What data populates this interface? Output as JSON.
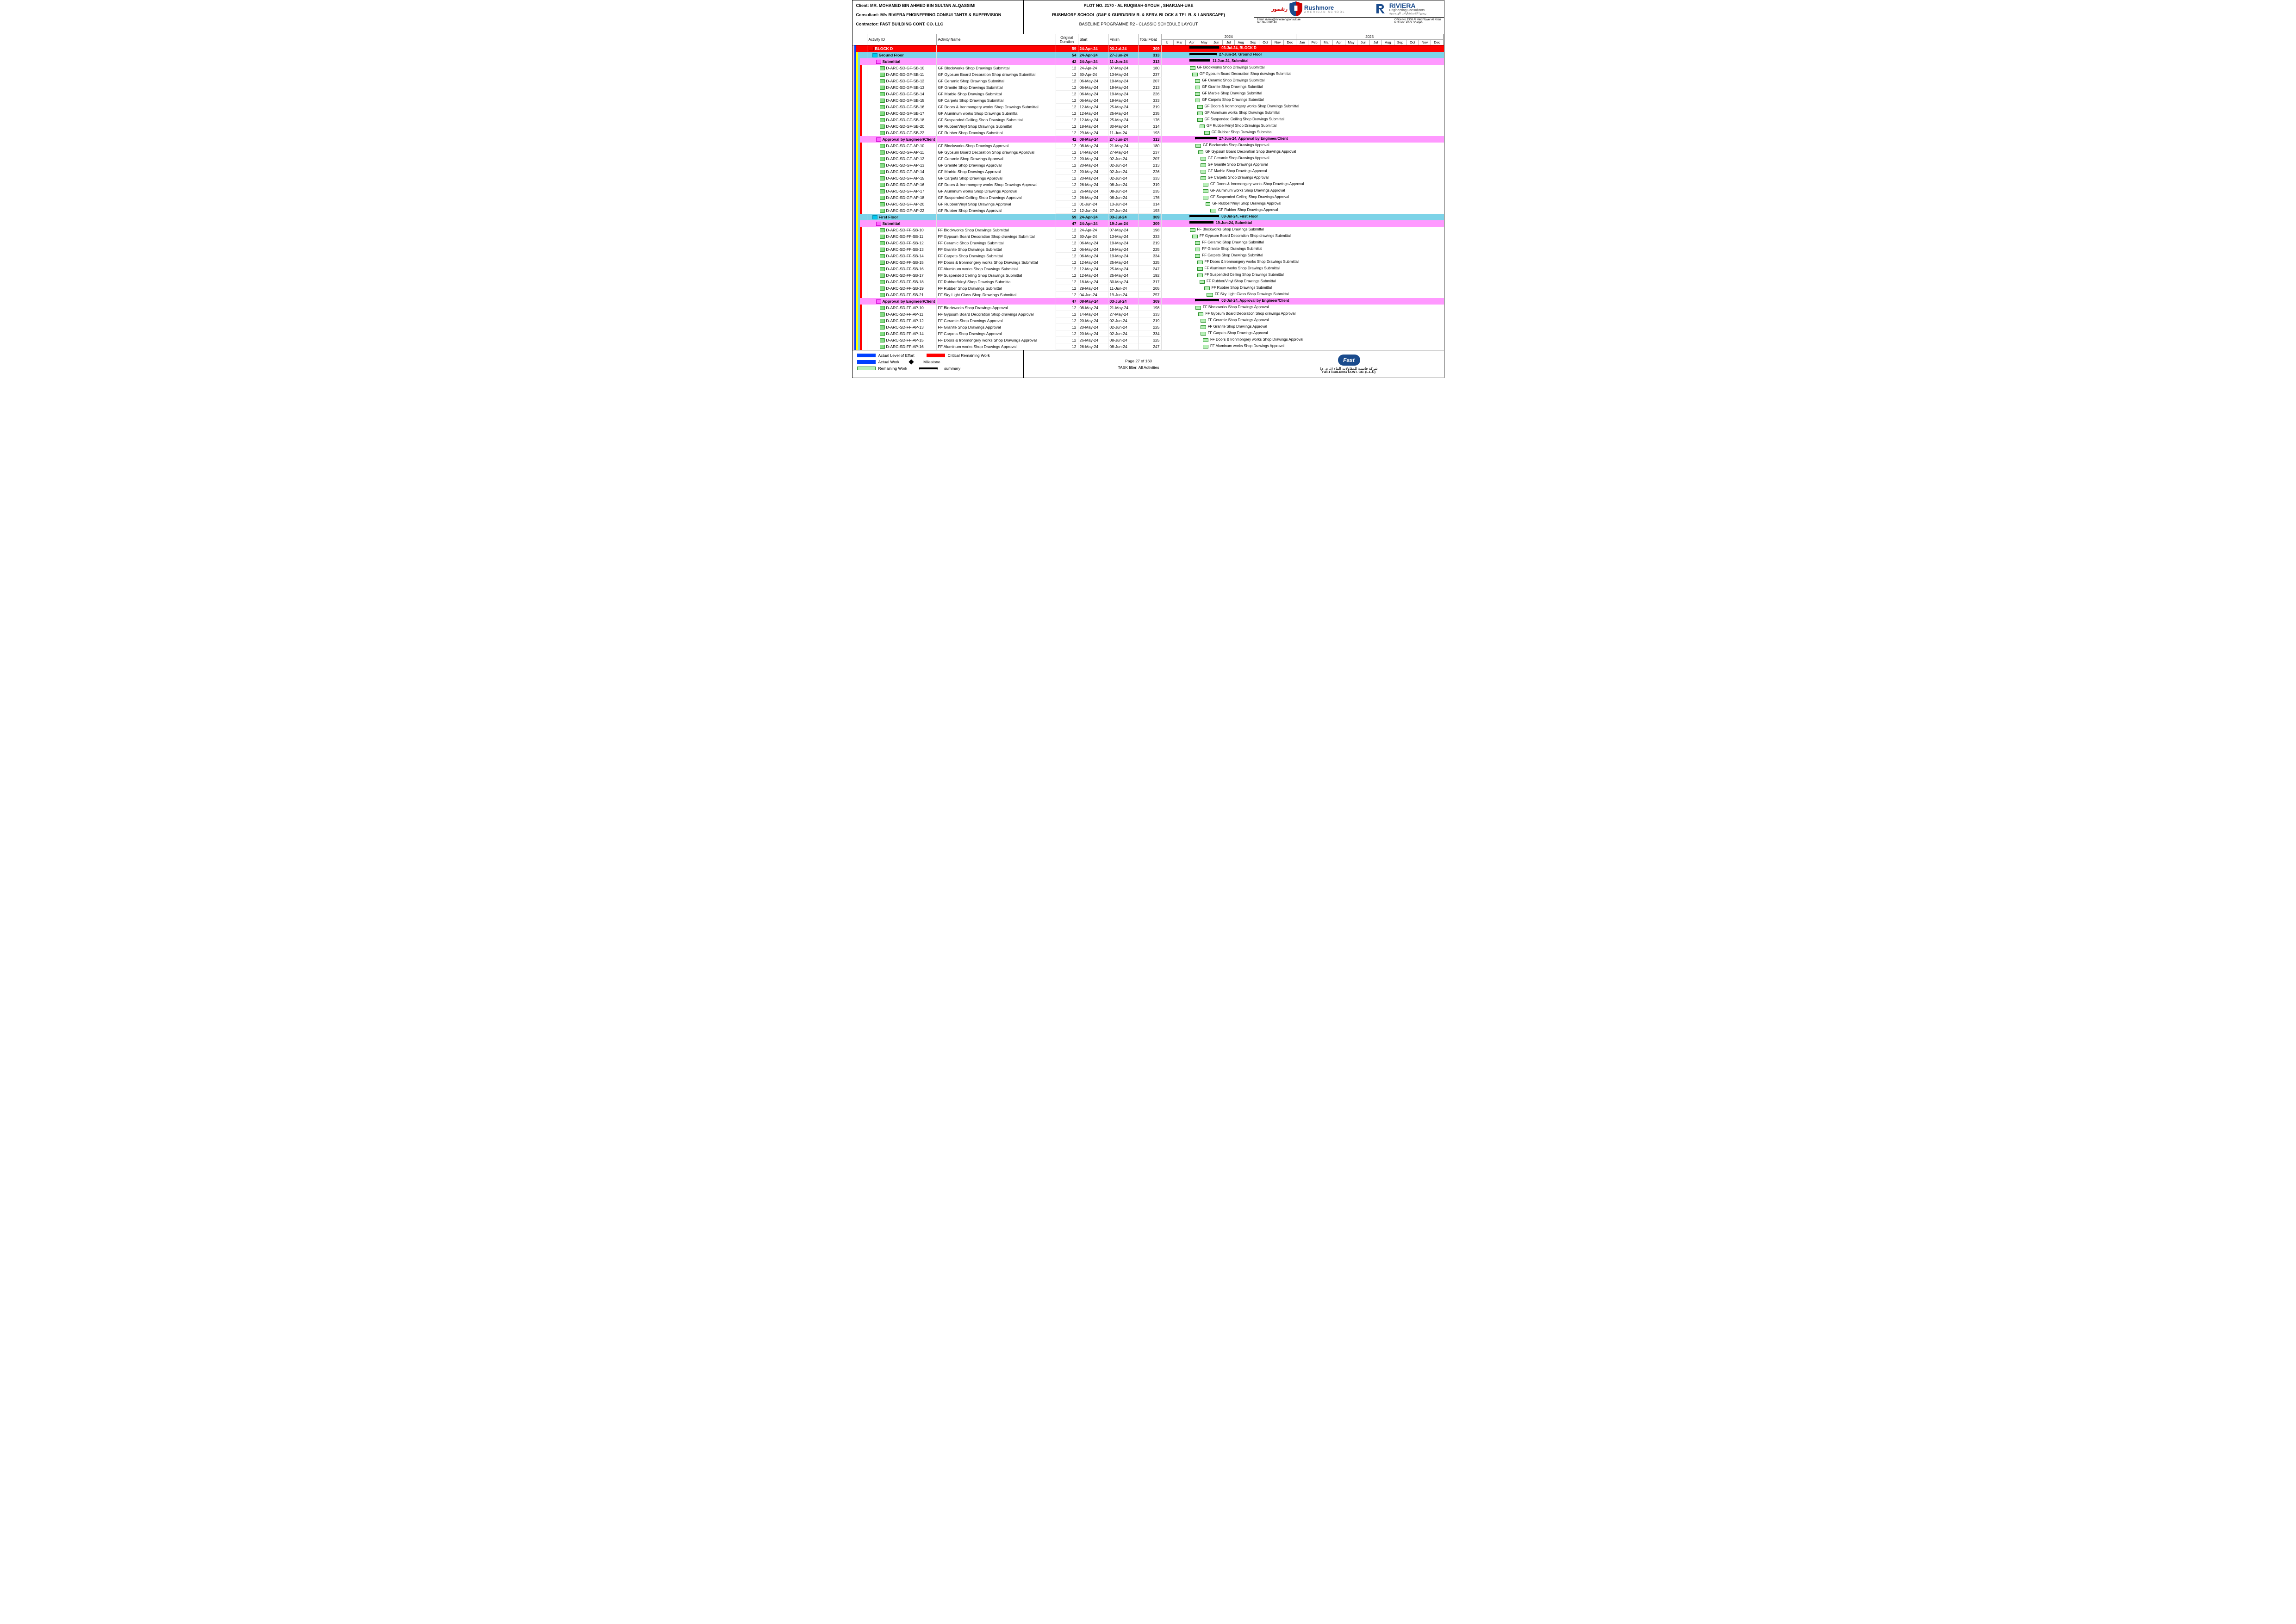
{
  "header": {
    "client_lbl": "Client: MR. MOHAMED BIN AHMED BIN SULTAN ALQASSIMI",
    "consultant_lbl": "Consultant: M/s RIVIERA ENGINEERING CONSULTANTS & SUPERVISION",
    "contractor_lbl": "Contractor: FAST BUILDING CONT. CO. LLC",
    "plot": "PLOT NO. 2170 - AL RUQIBAH-SYOUH , SHARJAH-UAE",
    "school": "RUSHMORE SCHOOL (G&F & GURD/DRIV R. & SERV. BLOCK & TEL R. & LANDSCAPE)",
    "baseline": "BASELINE PROGRAMME R2 - CLASSIC SCHEDULE LAYOUT",
    "rush_ar": "رشمور",
    "rush_en": "Rushmore",
    "rush_sub": "AMERICAN SCHOOL",
    "riv_name": "RIVIERA",
    "riv_sub1": "Engineering Consultants",
    "riv_sub2": "ريفيرا للإستشارات الهندسية",
    "addr_email": "Email: riviera@rivieraengconsult.ae",
    "addr_tel": "Tel: 06-5290148",
    "addr_off": "Office No.1308 Al Hind Tower Al Khan",
    "addr_po": "P.O.Box: 4279 Sharjah"
  },
  "cols": {
    "c1": "Activity ID",
    "c2": "Activity Name",
    "c3": "Original Duration",
    "c4": "Start",
    "c5": "Finish",
    "c6": "Total Float"
  },
  "timeline": {
    "years": [
      "2024",
      "2025"
    ],
    "months": [
      "b",
      "Mar",
      "Apr",
      "May",
      "Jun",
      "Jul",
      "Aug",
      "Sep",
      "Oct",
      "Nov",
      "Dec",
      "Jan",
      "Feb",
      "Mar",
      "Apr",
      "May",
      "Jun",
      "Jul",
      "Aug",
      "Sep",
      "Oct",
      "Nov",
      "Dec"
    ],
    "start": "2024-02-15",
    "end": "2025-12-31",
    "totalDays": 685
  },
  "vstripes": [
    "#ffcccc",
    "#0040ff",
    "#ffff00",
    "#7dd3e8",
    "#ff0000"
  ],
  "rows": [
    {
      "lvl": 0,
      "indent": 0,
      "ico": "ico-red",
      "id": "BLOCK D",
      "name": "",
      "dur": "59",
      "start": "24-Apr-24",
      "finish": "03-Jul-24",
      "tf": "309",
      "sum": true,
      "d0": 69,
      "d1": 139,
      "label": "03-Jul-24, BLOCK D"
    },
    {
      "lvl": 1,
      "indent": 1,
      "ico": "ico-cyan",
      "id": "Ground Floor",
      "name": "",
      "dur": "54",
      "start": "24-Apr-24",
      "finish": "27-Jun-24",
      "tf": "313",
      "sum": true,
      "d0": 69,
      "d1": 133,
      "label": "27-Jun-24, Ground Floor"
    },
    {
      "lvl": 2,
      "indent": 2,
      "ico": "ico-pink",
      "id": "Submittal",
      "name": "",
      "dur": "42",
      "start": "24-Apr-24",
      "finish": "11-Jun-24",
      "tf": "313",
      "sum": true,
      "d0": 69,
      "d1": 117,
      "label": "11-Jun-24, Submittal"
    },
    {
      "lvl": 3,
      "indent": 3,
      "ico": "ico-task",
      "id": "D-ARC-SD-GF-SB-10",
      "name": "GF Blockworks Shop Drawings Submittal",
      "dur": "12",
      "start": "24-Apr-24",
      "finish": "07-May-24",
      "tf": "180",
      "d0": 69,
      "d1": 82,
      "label": "GF Blockworks Shop Drawings Submittal"
    },
    {
      "lvl": 3,
      "indent": 3,
      "ico": "ico-task",
      "id": "D-ARC-SD-GF-SB-11",
      "name": "GF Gypsum Board Decoration Shop drawings Submittal",
      "dur": "12",
      "start": "30-Apr-24",
      "finish": "13-May-24",
      "tf": "237",
      "d0": 75,
      "d1": 88,
      "label": "GF Gypsum Board Decoration Shop drawings Submittal"
    },
    {
      "lvl": 3,
      "indent": 3,
      "ico": "ico-task",
      "id": "D-ARC-SD-GF-SB-12",
      "name": "GF Ceramic Shop Drawings Submittal",
      "dur": "12",
      "start": "06-May-24",
      "finish": "19-May-24",
      "tf": "207",
      "d0": 81,
      "d1": 94,
      "label": "GF Ceramic Shop Drawings Submittal"
    },
    {
      "lvl": 3,
      "indent": 3,
      "ico": "ico-task",
      "id": "D-ARC-SD-GF-SB-13",
      "name": "GF Granite Shop Drawings Submittal",
      "dur": "12",
      "start": "06-May-24",
      "finish": "19-May-24",
      "tf": "213",
      "d0": 81,
      "d1": 94,
      "label": "GF Granite Shop Drawings Submittal"
    },
    {
      "lvl": 3,
      "indent": 3,
      "ico": "ico-task",
      "id": "D-ARC-SD-GF-SB-14",
      "name": "GF Marble Shop Drawings Submittal",
      "dur": "12",
      "start": "06-May-24",
      "finish": "19-May-24",
      "tf": "226",
      "d0": 81,
      "d1": 94,
      "label": "GF Marble Shop Drawings Submittal"
    },
    {
      "lvl": 3,
      "indent": 3,
      "ico": "ico-task",
      "id": "D-ARC-SD-GF-SB-15",
      "name": "GF Carpets Shop Drawings Submittal",
      "dur": "12",
      "start": "06-May-24",
      "finish": "19-May-24",
      "tf": "333",
      "d0": 81,
      "d1": 94,
      "label": "GF Carpets Shop Drawings Submittal"
    },
    {
      "lvl": 3,
      "indent": 3,
      "ico": "ico-task",
      "id": "D-ARC-SD-GF-SB-16",
      "name": "GF Doors & Ironmongery works Shop Drawings Submittal",
      "dur": "12",
      "start": "12-May-24",
      "finish": "25-May-24",
      "tf": "319",
      "d0": 87,
      "d1": 100,
      "label": "GF Doors & Ironmongery works Shop Drawings Submittal"
    },
    {
      "lvl": 3,
      "indent": 3,
      "ico": "ico-task",
      "id": "D-ARC-SD-GF-SB-17",
      "name": "GF Aluminum works Shop Drawings Submittal",
      "dur": "12",
      "start": "12-May-24",
      "finish": "25-May-24",
      "tf": "235",
      "d0": 87,
      "d1": 100,
      "label": "GF Aluminum works Shop Drawings Submittal"
    },
    {
      "lvl": 3,
      "indent": 3,
      "ico": "ico-task",
      "id": "D-ARC-SD-GF-SB-18",
      "name": "GF Suspended Ceiling Shop Drawings Submittal",
      "dur": "12",
      "start": "12-May-24",
      "finish": "25-May-24",
      "tf": "176",
      "d0": 87,
      "d1": 100,
      "label": "GF Suspended Ceiling Shop Drawings Submittal"
    },
    {
      "lvl": 3,
      "indent": 3,
      "ico": "ico-task",
      "id": "D-ARC-SD-GF-SB-20",
      "name": "GF Rubber/Vinyl Shop Drawings Submittal",
      "dur": "12",
      "start": "18-May-24",
      "finish": "30-May-24",
      "tf": "314",
      "d0": 93,
      "d1": 105,
      "label": "GF Rubber/Vinyl Shop Drawings Submittal"
    },
    {
      "lvl": 3,
      "indent": 3,
      "ico": "ico-task",
      "id": "D-ARC-SD-GF-SB-22",
      "name": "GF Rubber Shop Drawings Submittal",
      "dur": "12",
      "start": "29-May-24",
      "finish": "11-Jun-24",
      "tf": "193",
      "d0": 104,
      "d1": 117,
      "label": "GF Rubber Shop Drawings Submittal"
    },
    {
      "lvl": 2,
      "indent": 2,
      "ico": "ico-pink",
      "id": "Approval by Engineer/Client",
      "name": "",
      "dur": "42",
      "start": "08-May-24",
      "finish": "27-Jun-24",
      "tf": "313",
      "sum": true,
      "d0": 83,
      "d1": 133,
      "label": "27-Jun-24, Approval by Engineer/Client"
    },
    {
      "lvl": 3,
      "indent": 3,
      "ico": "ico-task",
      "id": "D-ARC-SD-GF-AP-10",
      "name": "GF Blockworks Shop Drawings Approval",
      "dur": "12",
      "start": "08-May-24",
      "finish": "21-May-24",
      "tf": "180",
      "d0": 83,
      "d1": 96,
      "label": "GF Blockworks Shop Drawings Approval"
    },
    {
      "lvl": 3,
      "indent": 3,
      "ico": "ico-task",
      "id": "D-ARC-SD-GF-AP-11",
      "name": "GF Gypsum Board Decoration Shop drawings Approval",
      "dur": "12",
      "start": "14-May-24",
      "finish": "27-May-24",
      "tf": "237",
      "d0": 89,
      "d1": 102,
      "label": "GF Gypsum Board Decoration Shop drawings Approval"
    },
    {
      "lvl": 3,
      "indent": 3,
      "ico": "ico-task",
      "id": "D-ARC-SD-GF-AP-12",
      "name": "GF Ceramic Shop Drawings Approval",
      "dur": "12",
      "start": "20-May-24",
      "finish": "02-Jun-24",
      "tf": "207",
      "d0": 95,
      "d1": 108,
      "label": "GF Ceramic Shop Drawings Approval"
    },
    {
      "lvl": 3,
      "indent": 3,
      "ico": "ico-task",
      "id": "D-ARC-SD-GF-AP-13",
      "name": "GF Granite Shop Drawings Approval",
      "dur": "12",
      "start": "20-May-24",
      "finish": "02-Jun-24",
      "tf": "213",
      "d0": 95,
      "d1": 108,
      "label": "GF Granite Shop Drawings Approval"
    },
    {
      "lvl": 3,
      "indent": 3,
      "ico": "ico-task",
      "id": "D-ARC-SD-GF-AP-14",
      "name": "GF Marble Shop Drawings Approval",
      "dur": "12",
      "start": "20-May-24",
      "finish": "02-Jun-24",
      "tf": "226",
      "d0": 95,
      "d1": 108,
      "label": "GF Marble Shop Drawings Approval"
    },
    {
      "lvl": 3,
      "indent": 3,
      "ico": "ico-task",
      "id": "D-ARC-SD-GF-AP-15",
      "name": "GF Carpets Shop Drawings Approval",
      "dur": "12",
      "start": "20-May-24",
      "finish": "02-Jun-24",
      "tf": "333",
      "d0": 95,
      "d1": 108,
      "label": "GF Carpets Shop Drawings Approval"
    },
    {
      "lvl": 3,
      "indent": 3,
      "ico": "ico-task",
      "id": "D-ARC-SD-GF-AP-16",
      "name": "GF Doors & Ironmongery works Shop Drawings Approval",
      "dur": "12",
      "start": "26-May-24",
      "finish": "08-Jun-24",
      "tf": "319",
      "d0": 101,
      "d1": 114,
      "label": "GF Doors & Ironmongery works Shop Drawings Approval"
    },
    {
      "lvl": 3,
      "indent": 3,
      "ico": "ico-task",
      "id": "D-ARC-SD-GF-AP-17",
      "name": "GF Aluminum works Shop Drawings Approval",
      "dur": "12",
      "start": "26-May-24",
      "finish": "08-Jun-24",
      "tf": "235",
      "d0": 101,
      "d1": 114,
      "label": "GF Aluminum works Shop Drawings Approval"
    },
    {
      "lvl": 3,
      "indent": 3,
      "ico": "ico-task",
      "id": "D-ARC-SD-GF-AP-18",
      "name": "GF Suspended Ceiling Shop Drawings Approval",
      "dur": "12",
      "start": "26-May-24",
      "finish": "08-Jun-24",
      "tf": "176",
      "d0": 101,
      "d1": 114,
      "label": "GF Suspended Ceiling Shop Drawings Approval"
    },
    {
      "lvl": 3,
      "indent": 3,
      "ico": "ico-task",
      "id": "D-ARC-SD-GF-AP-20",
      "name": "GF Rubber/Vinyl Shop Drawings Approval",
      "dur": "12",
      "start": "01-Jun-24",
      "finish": "13-Jun-24",
      "tf": "314",
      "d0": 107,
      "d1": 119,
      "label": "GF Rubber/Vinyl Shop Drawings Approval"
    },
    {
      "lvl": 3,
      "indent": 3,
      "ico": "ico-task",
      "id": "D-ARC-SD-GF-AP-22",
      "name": "GF Rubber Shop Drawings Approval",
      "dur": "12",
      "start": "12-Jun-24",
      "finish": "27-Jun-24",
      "tf": "193",
      "d0": 118,
      "d1": 133,
      "label": "GF Rubber Shop Drawings Approval"
    },
    {
      "lvl": 1,
      "indent": 1,
      "ico": "ico-cyan",
      "id": "First Floor",
      "name": "",
      "dur": "59",
      "start": "24-Apr-24",
      "finish": "03-Jul-24",
      "tf": "309",
      "sum": true,
      "d0": 69,
      "d1": 139,
      "label": "03-Jul-24, First Floor"
    },
    {
      "lvl": 2,
      "indent": 2,
      "ico": "ico-pink",
      "id": "Submittal",
      "name": "",
      "dur": "47",
      "start": "24-Apr-24",
      "finish": "19-Jun-24",
      "tf": "309",
      "sum": true,
      "d0": 69,
      "d1": 125,
      "label": "19-Jun-24, Submittal"
    },
    {
      "lvl": 3,
      "indent": 3,
      "ico": "ico-task",
      "id": "D-ARC-SD-FF-SB-10",
      "name": "FF Blockworks Shop Drawings Submittal",
      "dur": "12",
      "start": "24-Apr-24",
      "finish": "07-May-24",
      "tf": "198",
      "d0": 69,
      "d1": 82,
      "label": "FF Blockworks Shop Drawings Submittal"
    },
    {
      "lvl": 3,
      "indent": 3,
      "ico": "ico-task",
      "id": "D-ARC-SD-FF-SB-11",
      "name": "FF Gypsum Board Decoration Shop drawings Submittal",
      "dur": "12",
      "start": "30-Apr-24",
      "finish": "13-May-24",
      "tf": "333",
      "d0": 75,
      "d1": 88,
      "label": "FF Gypsum Board Decoration Shop drawings Submittal"
    },
    {
      "lvl": 3,
      "indent": 3,
      "ico": "ico-task",
      "id": "D-ARC-SD-FF-SB-12",
      "name": "FF Ceramic Shop Drawings Submittal",
      "dur": "12",
      "start": "06-May-24",
      "finish": "19-May-24",
      "tf": "219",
      "d0": 81,
      "d1": 94,
      "label": "FF Ceramic Shop Drawings Submittal"
    },
    {
      "lvl": 3,
      "indent": 3,
      "ico": "ico-task",
      "id": "D-ARC-SD-FF-SB-13",
      "name": "FF Granite Shop Drawings Submittal",
      "dur": "12",
      "start": "06-May-24",
      "finish": "19-May-24",
      "tf": "225",
      "d0": 81,
      "d1": 94,
      "label": "FF Granite Shop Drawings Submittal"
    },
    {
      "lvl": 3,
      "indent": 3,
      "ico": "ico-task",
      "id": "D-ARC-SD-FF-SB-14",
      "name": "FF Carpets Shop Drawings Submittal",
      "dur": "12",
      "start": "06-May-24",
      "finish": "19-May-24",
      "tf": "334",
      "d0": 81,
      "d1": 94,
      "label": "FF Carpets Shop Drawings Submittal"
    },
    {
      "lvl": 3,
      "indent": 3,
      "ico": "ico-task",
      "id": "D-ARC-SD-FF-SB-15",
      "name": "FF Doors & Ironmongery works Shop Drawings Submittal",
      "dur": "12",
      "start": "12-May-24",
      "finish": "25-May-24",
      "tf": "325",
      "d0": 87,
      "d1": 100,
      "label": "FF Doors & Ironmongery works Shop Drawings Submittal"
    },
    {
      "lvl": 3,
      "indent": 3,
      "ico": "ico-task",
      "id": "D-ARC-SD-FF-SB-16",
      "name": "FF Aluminum works Shop Drawings Submittal",
      "dur": "12",
      "start": "12-May-24",
      "finish": "25-May-24",
      "tf": "247",
      "d0": 87,
      "d1": 100,
      "label": "FF Aluminum works Shop Drawings Submittal"
    },
    {
      "lvl": 3,
      "indent": 3,
      "ico": "ico-task",
      "id": "D-ARC-SD-FF-SB-17",
      "name": "FF Suspended Ceiling Shop Drawings Submittal",
      "dur": "12",
      "start": "12-May-24",
      "finish": "25-May-24",
      "tf": "192",
      "d0": 87,
      "d1": 100,
      "label": "FF Suspended Ceiling Shop Drawings Submittal"
    },
    {
      "lvl": 3,
      "indent": 3,
      "ico": "ico-task",
      "id": "D-ARC-SD-FF-SB-18",
      "name": "FF Rubber/Vinyl Shop Drawings Submittal",
      "dur": "12",
      "start": "18-May-24",
      "finish": "30-May-24",
      "tf": "317",
      "d0": 93,
      "d1": 105,
      "label": "FF Rubber/Vinyl Shop Drawings Submittal"
    },
    {
      "lvl": 3,
      "indent": 3,
      "ico": "ico-task",
      "id": "D-ARC-SD-FF-SB-19",
      "name": "FF Rubber Shop Drawings Submittal",
      "dur": "12",
      "start": "29-May-24",
      "finish": "11-Jun-24",
      "tf": "205",
      "d0": 104,
      "d1": 117,
      "label": "FF Rubber Shop Drawings Submittal"
    },
    {
      "lvl": 3,
      "indent": 3,
      "ico": "ico-task",
      "id": "D-ARC-SD-FF-SB-21",
      "name": "FF Sky Light Glass Shop Drawings Submittal",
      "dur": "12",
      "start": "04-Jun-24",
      "finish": "19-Jun-24",
      "tf": "257",
      "d0": 110,
      "d1": 125,
      "label": "FF Sky Light Glass Shop Drawings Submittal"
    },
    {
      "lvl": 2,
      "indent": 2,
      "ico": "ico-pink",
      "id": "Approval by Engineer/Client",
      "name": "",
      "dur": "47",
      "start": "08-May-24",
      "finish": "03-Jul-24",
      "tf": "309",
      "sum": true,
      "d0": 83,
      "d1": 139,
      "label": "03-Jul-24, Approval by Engineer/Client"
    },
    {
      "lvl": 3,
      "indent": 3,
      "ico": "ico-task",
      "id": "D-ARC-SD-FF-AP-10",
      "name": "FF Blockworks Shop Drawings Approval",
      "dur": "12",
      "start": "08-May-24",
      "finish": "21-May-24",
      "tf": "198",
      "d0": 83,
      "d1": 96,
      "label": "FF Blockworks Shop Drawings Approval"
    },
    {
      "lvl": 3,
      "indent": 3,
      "ico": "ico-task",
      "id": "D-ARC-SD-FF-AP-11",
      "name": "FF Gypsum Board Decoration Shop drawings Approval",
      "dur": "12",
      "start": "14-May-24",
      "finish": "27-May-24",
      "tf": "333",
      "d0": 89,
      "d1": 102,
      "label": "FF Gypsum Board Decoration Shop drawings Approval"
    },
    {
      "lvl": 3,
      "indent": 3,
      "ico": "ico-task",
      "id": "D-ARC-SD-FF-AP-12",
      "name": "FF Ceramic Shop Drawings Approval",
      "dur": "12",
      "start": "20-May-24",
      "finish": "02-Jun-24",
      "tf": "219",
      "d0": 95,
      "d1": 108,
      "label": "FF Ceramic Shop Drawings Approval"
    },
    {
      "lvl": 3,
      "indent": 3,
      "ico": "ico-task",
      "id": "D-ARC-SD-FF-AP-13",
      "name": "FF Granite Shop Drawings Approval",
      "dur": "12",
      "start": "20-May-24",
      "finish": "02-Jun-24",
      "tf": "225",
      "d0": 95,
      "d1": 108,
      "label": "FF Granite Shop Drawings Approval"
    },
    {
      "lvl": 3,
      "indent": 3,
      "ico": "ico-task",
      "id": "D-ARC-SD-FF-AP-14",
      "name": "FF Carpets Shop Drawings Approval",
      "dur": "12",
      "start": "20-May-24",
      "finish": "02-Jun-24",
      "tf": "334",
      "d0": 95,
      "d1": 108,
      "label": "FF Carpets Shop Drawings Approval"
    },
    {
      "lvl": 3,
      "indent": 3,
      "ico": "ico-task",
      "id": "D-ARC-SD-FF-AP-15",
      "name": "FF Doors & Ironmongery works Shop Drawings Approval",
      "dur": "12",
      "start": "26-May-24",
      "finish": "08-Jun-24",
      "tf": "325",
      "d0": 101,
      "d1": 114,
      "label": "FF Doors & Ironmongery works Shop Drawings Approval"
    },
    {
      "lvl": 3,
      "indent": 3,
      "ico": "ico-task",
      "id": "D-ARC-SD-FF-AP-16",
      "name": "FF Aluminum works Shop Drawings Approval",
      "dur": "12",
      "start": "26-May-24",
      "finish": "08-Jun-24",
      "tf": "247",
      "d0": 101,
      "d1": 114,
      "label": "FF Aluminum works Shop Drawings Approval"
    }
  ],
  "legend": {
    "l1": "Actual Level of Effort",
    "l2": "Critical Remaining Work",
    "l3": "Actual Work",
    "l4": "Milestone",
    "l5": "Remaining Work",
    "l6": "summary"
  },
  "footer": {
    "page": "Page 27 of 160",
    "filter": "TASK filter: All Activities",
    "fast_ar": "شركة فاست للمقاولات البناء (ذ. م. م)",
    "fast_en": "FAST BUILDING CONT. CO. (L.L.C)"
  }
}
